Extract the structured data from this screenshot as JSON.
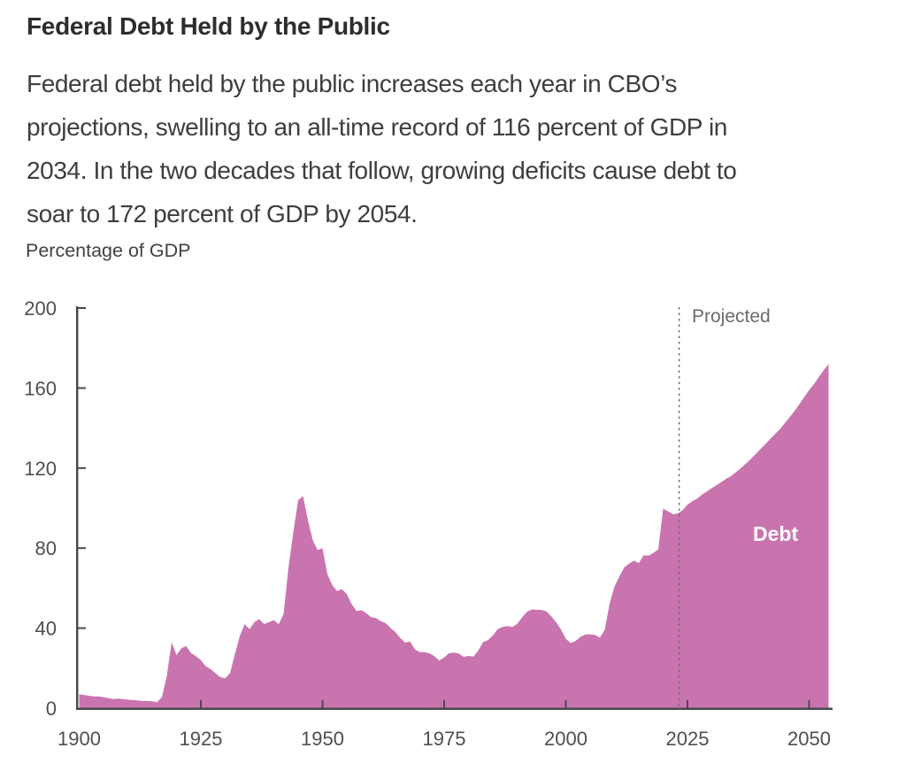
{
  "page": {
    "title": "Federal Debt Held by the Public",
    "subtitle_lines": [
      "Federal debt held by the public increases each year in CBO’s",
      "projections, swelling to an all-time record of 116 percent of GDP in",
      "2034. In the two decades that follow, growing deficits cause debt to",
      "soar to 172 percent of GDP by 2054."
    ],
    "axis_unit_label": "Percentage of GDP"
  },
  "chart_data": {
    "type": "area",
    "title": "Federal Debt Held by the Public",
    "ylabel": "Percentage of GDP",
    "xlabel": "",
    "grid": false,
    "legend_position": "none",
    "ylim": [
      0,
      200
    ],
    "xlim": [
      1900,
      2055
    ],
    "x_ticks": [
      "1900",
      "1925",
      "1950",
      "1975",
      "2000",
      "2025",
      "2050"
    ],
    "y_ticks": [
      "0",
      "40",
      "80",
      "120",
      "160",
      "200"
    ],
    "annotations": {
      "projected_label": "Projected",
      "area_label": "Debt",
      "divider_year": 2023.3
    },
    "colors": {
      "area": "#C974AF",
      "axis": "#4A4A4A",
      "tick_label": "#4F4F4F",
      "divider": "#6B6B6B",
      "projected_text": "#6B6B6B",
      "area_label_text": "#FFFFFF"
    },
    "series": [
      {
        "name": "Debt",
        "start_year": 1900,
        "end_year": 2054,
        "values": [
          7.0,
          6.6,
          6.2,
          5.9,
          5.9,
          5.5,
          5.0,
          4.5,
          4.8,
          4.5,
          4.2,
          4.1,
          3.9,
          3.6,
          3.6,
          3.4,
          2.9,
          5.5,
          16.0,
          33.0,
          26.5,
          30.0,
          31.0,
          27.5,
          26.0,
          24.0,
          21.0,
          19.5,
          17.5,
          15.5,
          15.0,
          17.5,
          27.0,
          36.0,
          42.0,
          39.5,
          43.0,
          44.5,
          42.0,
          43.0,
          44.0,
          42.0,
          47.0,
          70.0,
          88.0,
          104.0,
          106.0,
          94.0,
          84.0,
          79.0,
          80.0,
          67.0,
          61.5,
          58.5,
          59.5,
          57.0,
          52.0,
          48.5,
          49.0,
          47.5,
          45.5,
          45.0,
          43.5,
          42.5,
          40.0,
          38.0,
          35.0,
          32.8,
          33.3,
          29.3,
          28.0,
          28.0,
          27.4,
          26.0,
          23.8,
          25.3,
          27.5,
          27.8,
          27.4,
          25.6,
          26.1,
          25.8,
          28.7,
          33.0,
          34.0,
          36.3,
          39.5,
          40.6,
          41.0,
          40.6,
          42.1,
          45.3,
          48.1,
          49.3,
          49.2,
          49.1,
          48.4,
          45.9,
          43.0,
          39.4,
          34.7,
          32.5,
          33.6,
          35.6,
          36.8,
          36.9,
          36.6,
          35.2,
          39.2,
          52.3,
          60.8,
          65.8,
          70.3,
          72.2,
          73.7,
          72.5,
          76.4,
          76.2,
          77.6,
          79.4,
          99.8,
          98.4,
          97.0,
          97.3,
          99.0,
          101.7,
          103.5,
          104.8,
          106.8,
          108.3,
          110.0,
          111.5,
          113.1,
          114.7,
          116.0,
          118.0,
          120.0,
          122.2,
          124.5,
          127.0,
          129.5,
          132.0,
          134.5,
          137.0,
          139.5,
          142.5,
          145.5,
          148.5,
          152.0,
          155.5,
          159.0,
          162.0,
          165.5,
          169.0,
          172.0
        ]
      }
    ]
  }
}
